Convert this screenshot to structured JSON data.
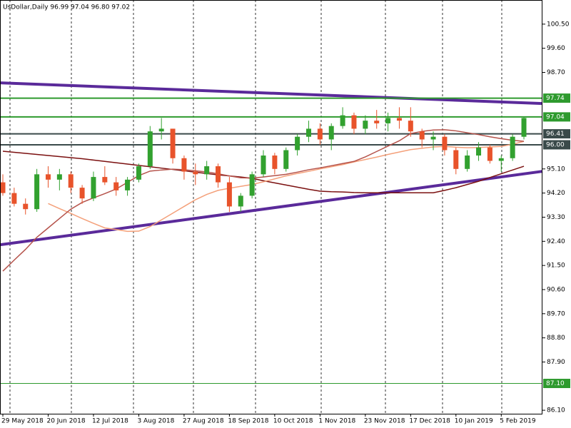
{
  "chart_data": {
    "type": "candlestick",
    "title": "UsDollar,Daily  96.99 97.04 96.80 97.02",
    "categories": [
      "29 May 2018",
      null,
      null,
      null,
      "20 Jun 2018",
      null,
      null,
      null,
      "12 Jul 2018",
      null,
      null,
      null,
      "3 Aug 2018",
      null,
      null,
      null,
      "27 Aug 2018",
      null,
      null,
      null,
      "18 Sep 2018",
      null,
      null,
      null,
      "10 Oct 2018",
      null,
      null,
      null,
      "1 Nov 2018",
      null,
      null,
      null,
      "23 Nov 2018",
      null,
      null,
      null,
      "17 Dec 2018",
      null,
      null,
      null,
      "10 Jan 2019",
      null,
      null,
      null,
      "5 Feb 2019",
      null,
      null
    ],
    "open": [
      94.6,
      94.2,
      93.8,
      93.6,
      94.9,
      94.7,
      94.9,
      94.4,
      94.0,
      94.8,
      94.6,
      94.3,
      94.7,
      95.2,
      96.5,
      96.6,
      95.5,
      95.0,
      94.9,
      95.2,
      94.6,
      93.7,
      94.1,
      94.9,
      95.6,
      95.1,
      95.8,
      96.3,
      96.6,
      96.2,
      96.7,
      97.1,
      96.6,
      96.9,
      96.8,
      97.0,
      96.9,
      96.5,
      96.2,
      96.3,
      95.8,
      95.1,
      95.6,
      95.9,
      95.4,
      95.5,
      96.3
    ],
    "high": [
      94.9,
      94.4,
      94.0,
      95.1,
      95.2,
      95.1,
      95.0,
      94.5,
      95.0,
      95.2,
      94.8,
      94.8,
      95.3,
      96.7,
      97.0,
      96.6,
      95.6,
      95.3,
      95.4,
      95.3,
      94.8,
      94.2,
      95.0,
      95.8,
      95.7,
      95.9,
      96.4,
      96.9,
      96.8,
      96.8,
      97.4,
      97.2,
      97.1,
      97.3,
      97.2,
      97.4,
      97.4,
      96.6,
      96.5,
      96.4,
      95.9,
      95.8,
      96.1,
      96.0,
      95.6,
      96.4,
      97.04
    ],
    "low": [
      94.1,
      93.7,
      93.4,
      93.5,
      94.4,
      94.3,
      94.2,
      93.8,
      93.9,
      94.5,
      94.1,
      94.1,
      94.6,
      95.1,
      96.2,
      95.3,
      94.7,
      94.5,
      94.7,
      94.4,
      93.5,
      93.5,
      94.0,
      94.8,
      94.9,
      95.0,
      95.6,
      96.1,
      96.0,
      95.8,
      96.6,
      96.4,
      96.4,
      96.6,
      96.5,
      96.6,
      96.3,
      95.9,
      95.8,
      95.6,
      94.9,
      95.0,
      95.4,
      95.3,
      95.0,
      95.4,
      96.2
    ],
    "close": [
      94.2,
      93.8,
      93.6,
      94.9,
      94.7,
      94.9,
      94.4,
      94.0,
      94.8,
      94.6,
      94.3,
      94.7,
      95.2,
      96.5,
      96.6,
      95.5,
      95.0,
      94.9,
      95.2,
      94.6,
      93.7,
      94.1,
      94.9,
      95.6,
      95.1,
      95.8,
      96.3,
      96.6,
      96.2,
      96.7,
      97.1,
      96.6,
      96.9,
      96.8,
      97.0,
      96.9,
      96.5,
      96.2,
      96.3,
      95.8,
      95.1,
      95.6,
      95.9,
      95.4,
      95.5,
      96.3,
      97.0
    ],
    "up_color": "#32a12f",
    "down_color": "#e8532b",
    "series": [
      {
        "color": "#7b1010",
        "values": [
          95.76,
          95.72,
          95.68,
          95.64,
          95.6,
          95.56,
          95.52,
          95.48,
          95.43,
          95.38,
          95.33,
          95.28,
          95.23,
          95.18,
          95.13,
          95.08,
          95.03,
          94.98,
          94.93,
          94.88,
          94.84,
          94.8,
          94.75,
          94.66,
          94.58,
          94.5,
          94.42,
          94.34,
          94.27,
          94.25,
          94.24,
          94.22,
          94.21,
          94.21,
          94.21,
          94.21,
          94.21,
          94.21,
          94.21,
          94.3,
          94.4,
          94.52,
          94.64,
          94.78,
          94.92,
          95.06,
          95.2
        ]
      },
      {
        "color": "#f4a07a",
        "values": [
          null,
          null,
          null,
          null,
          93.81,
          93.62,
          93.44,
          93.25,
          93.07,
          92.9,
          92.84,
          92.77,
          92.78,
          92.95,
          93.2,
          93.45,
          93.7,
          93.95,
          94.15,
          94.3,
          94.38,
          94.45,
          94.52,
          94.62,
          94.73,
          94.84,
          94.93,
          95.01,
          95.1,
          95.18,
          95.26,
          95.36,
          95.45,
          95.54,
          95.64,
          95.73,
          95.82,
          95.87,
          95.92,
          95.94,
          95.91,
          95.89,
          95.9,
          95.92,
          95.94,
          96.02,
          96.13
        ]
      },
      {
        "color": "#b5524a",
        "values": [
          91.29,
          91.7,
          92.1,
          92.55,
          92.9,
          93.25,
          93.6,
          93.85,
          94.02,
          94.18,
          94.35,
          94.6,
          94.85,
          95.02,
          95.06,
          95.09,
          95.07,
          95.03,
          94.99,
          94.92,
          94.84,
          94.77,
          94.76,
          94.8,
          94.85,
          94.9,
          94.98,
          95.07,
          95.14,
          95.22,
          95.3,
          95.38,
          95.55,
          95.75,
          95.95,
          96.15,
          96.42,
          96.5,
          96.55,
          96.56,
          96.52,
          96.45,
          96.38,
          96.3,
          96.23,
          96.17,
          96.13
        ]
      }
    ],
    "levels": [
      {
        "value": 97.74,
        "color": "#2e9a2e"
      },
      {
        "value": 97.04,
        "color": "#2e9a2e"
      },
      {
        "value": 96.41,
        "color": "#3a4a4a"
      },
      {
        "value": 96.0,
        "label": "96.00",
        "color": "#3a4a4a"
      },
      {
        "value": 87.1,
        "label": "87.10",
        "color": "#2e9a2e"
      }
    ],
    "trendlines": [
      {
        "start": 98.31,
        "end": 97.54,
        "color": "#5a2a9a"
      },
      {
        "start": 92.27,
        "end": 95.01,
        "color": "#5a2a9a"
      }
    ],
    "ylim": [
      85.97,
      101.4
    ],
    "yticks": [
      {
        "value": 100.5,
        "label": "100.50"
      },
      {
        "value": 99.6,
        "label": "99.60"
      },
      {
        "value": 98.7,
        "label": "98.70"
      },
      {
        "value": 95.1,
        "label": "95.10"
      },
      {
        "value": 94.2,
        "label": "94.20"
      },
      {
        "value": 93.3,
        "label": "93.30"
      },
      {
        "value": 92.4,
        "label": "92.40"
      },
      {
        "value": 91.5,
        "label": "91.50"
      },
      {
        "value": 90.6,
        "label": "90.60"
      },
      {
        "value": 89.7,
        "label": "89.70"
      },
      {
        "value": 88.8,
        "label": "88.80"
      },
      {
        "value": 87.9,
        "label": "87.90"
      },
      {
        "value": 86.1,
        "label": "86.10"
      }
    ]
  }
}
